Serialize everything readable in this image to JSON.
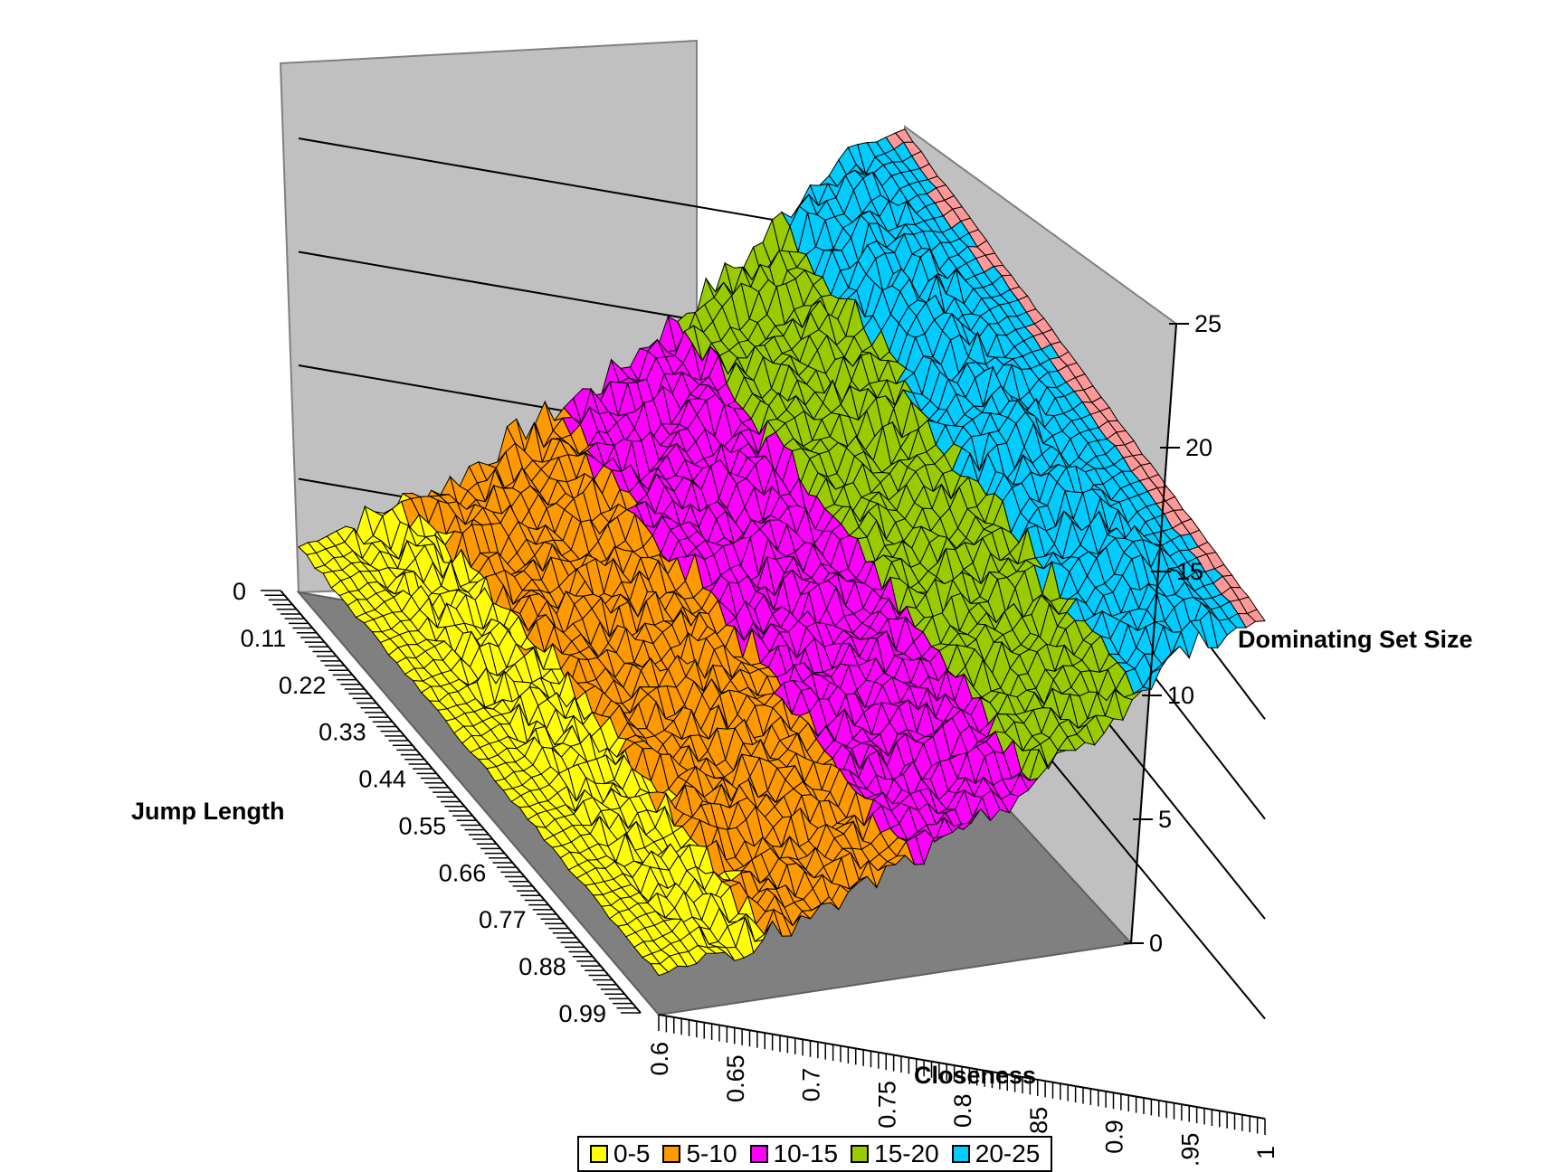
{
  "chart_data": {
    "type": "surface",
    "title": "",
    "xlabel": "Closeness",
    "ylabel": "Jump Length",
    "zlabel": "Dominating Set Size",
    "x_ticks": [
      "0.6",
      "0.65",
      "0.7",
      "0.75",
      "0.8",
      "0.85",
      "0.9",
      "0.95",
      "1"
    ],
    "y_ticks": [
      "0",
      "0.11",
      "0.22",
      "0.33",
      "0.44",
      "0.55",
      "0.66",
      "0.77",
      "0.88",
      "0.99"
    ],
    "z_ticks": [
      "0",
      "5",
      "10",
      "15",
      "20",
      "25"
    ],
    "zlim": [
      0,
      25
    ],
    "x_range": [
      0.6,
      1.0
    ],
    "y_range": [
      0,
      0.99
    ],
    "grid": true,
    "legend_position": "bottom",
    "bands": [
      {
        "label": "0-5",
        "color": "#ffff00"
      },
      {
        "label": "5-10",
        "color": "#ff9900"
      },
      {
        "label": "10-15",
        "color": "#ff00ff"
      },
      {
        "label": "15-20",
        "color": "#99cc00"
      },
      {
        "label": "20-25",
        "color": "#00ccff"
      }
    ],
    "top_band_color": "#ff9999",
    "approx_profile_by_closeness": [
      {
        "closeness": 0.6,
        "size": 2
      },
      {
        "closeness": 0.65,
        "size": 4
      },
      {
        "closeness": 0.7,
        "size": 6
      },
      {
        "closeness": 0.75,
        "size": 9
      },
      {
        "closeness": 0.8,
        "size": 11.5
      },
      {
        "closeness": 0.85,
        "size": 15
      },
      {
        "closeness": 0.9,
        "size": 18.5
      },
      {
        "closeness": 0.95,
        "size": 23
      },
      {
        "closeness": 1.0,
        "size": 25
      }
    ]
  },
  "colors": {
    "wall": "#c0c0c0",
    "floor": "#808080",
    "mesh": "#000000"
  }
}
